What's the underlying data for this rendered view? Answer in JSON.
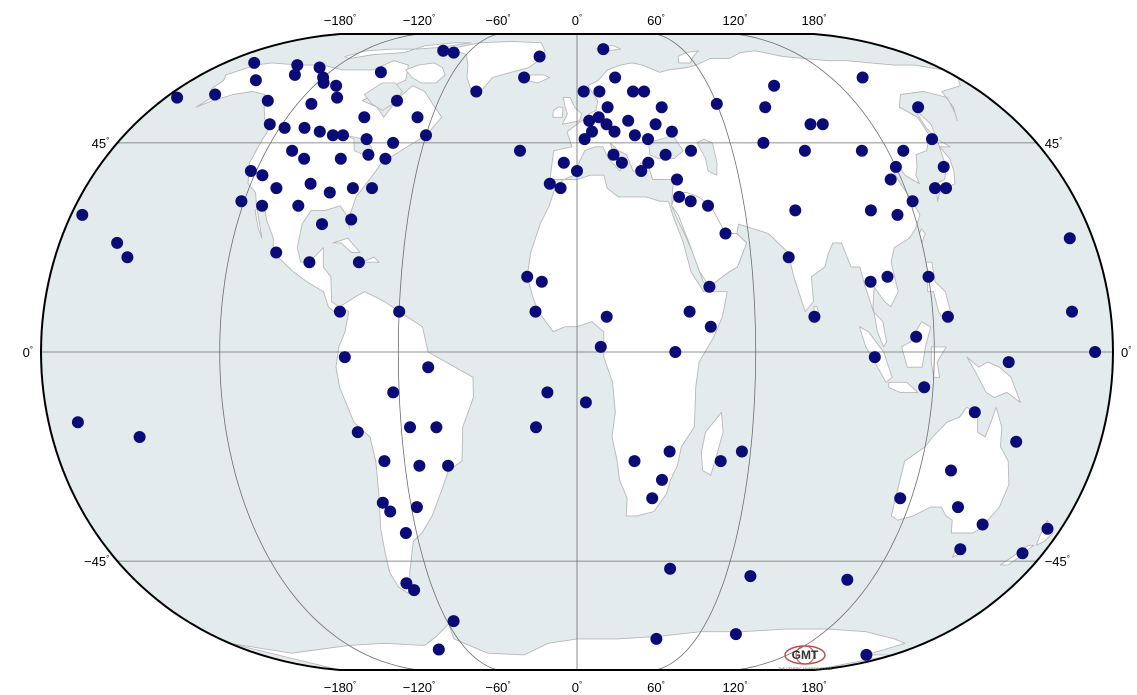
{
  "map": {
    "projection": "Winkel-Tripel-like world map",
    "colors": {
      "ocean": "#e3ebec",
      "land": "#ffffff",
      "coast": "#b8b8b8",
      "graticule": "#6e6e6e",
      "frame": "#000000",
      "station": "#0b0b78"
    },
    "top_lon_labels": [
      "−180",
      "−120",
      "−60",
      "0",
      "60",
      "120",
      "180"
    ],
    "bottom_lon_labels": [
      "−180",
      "−120",
      "−60",
      "0",
      "60",
      "120",
      "180"
    ],
    "left_lat_labels": [
      "45",
      "0",
      "−45"
    ],
    "right_lat_labels": [
      "45",
      "0",
      "−45"
    ],
    "degree_symbol": "°",
    "logo": {
      "text": "GMT",
      "caption": "THE GENERIC MAPPING TOOLS"
    },
    "stations": [
      [
        -165,
        71
      ],
      [
        -150,
        64
      ],
      [
        -141,
        70
      ],
      [
        -128,
        69
      ],
      [
        -135,
        66
      ],
      [
        -120,
        65
      ],
      [
        -117,
        63
      ],
      [
        -110,
        62
      ],
      [
        -95,
        67
      ],
      [
        -75,
        77
      ],
      [
        -68,
        76
      ],
      [
        -160,
        59
      ],
      [
        -175,
        58
      ],
      [
        -134,
        57
      ],
      [
        -114,
        56
      ],
      [
        -105,
        58
      ],
      [
        -88,
        52
      ],
      [
        -66,
        52
      ],
      [
        -78,
        57
      ],
      [
        -93,
        47
      ],
      [
        -83,
        46
      ],
      [
        -72,
        45
      ],
      [
        -125,
        50
      ],
      [
        -118,
        49
      ],
      [
        -110,
        49
      ],
      [
        -103,
        48
      ],
      [
        -97,
        47
      ],
      [
        -110,
        43
      ],
      [
        -104,
        41
      ],
      [
        -90,
        41
      ],
      [
        -80,
        42
      ],
      [
        -73,
        41
      ],
      [
        -60,
        47
      ],
      [
        -122,
        38
      ],
      [
        -117,
        37
      ],
      [
        -110,
        34
      ],
      [
        -98,
        35
      ],
      [
        -90,
        33
      ],
      [
        -82,
        34
      ],
      [
        -75,
        34
      ],
      [
        -121,
        31
      ],
      [
        -113,
        30
      ],
      [
        -100,
        30
      ],
      [
        -90,
        26
      ],
      [
        -80,
        27
      ],
      [
        -104,
        20
      ],
      [
        -92,
        18
      ],
      [
        -75,
        18
      ],
      [
        -160,
        22
      ],
      [
        -155,
        19
      ],
      [
        -176,
        28
      ],
      [
        -80,
        8
      ],
      [
        -60,
        8
      ],
      [
        -78,
        -1
      ],
      [
        -50,
        -3
      ],
      [
        -62,
        -8
      ],
      [
        -75,
        -16
      ],
      [
        -57,
        -15
      ],
      [
        -48,
        -15
      ],
      [
        -67,
        -22
      ],
      [
        -55,
        -23
      ],
      [
        -45,
        -23
      ],
      [
        -70,
        -31
      ],
      [
        -68,
        -33
      ],
      [
        -58,
        -32
      ],
      [
        -64,
        -38
      ],
      [
        -70,
        -51
      ],
      [
        -68,
        -53
      ],
      [
        -57,
        -63
      ],
      [
        -170,
        -14
      ],
      [
        -150,
        -17
      ],
      [
        -45,
        60
      ],
      [
        -25,
        65
      ],
      [
        -20,
        74
      ],
      [
        15,
        78
      ],
      [
        -22,
        43
      ],
      [
        -5,
        40
      ],
      [
        0,
        38
      ],
      [
        -10,
        35
      ],
      [
        -6,
        34
      ],
      [
        -17,
        15
      ],
      [
        -12,
        14
      ],
      [
        -14,
        8
      ],
      [
        3,
        46
      ],
      [
        6,
        48
      ],
      [
        9,
        52
      ],
      [
        12,
        50
      ],
      [
        15,
        48
      ],
      [
        5,
        51
      ],
      [
        13,
        55
      ],
      [
        10,
        60
      ],
      [
        25,
        60
      ],
      [
        30,
        60
      ],
      [
        18,
        65
      ],
      [
        3,
        60
      ],
      [
        21,
        51
      ],
      [
        23,
        47
      ],
      [
        28,
        46
      ],
      [
        32,
        50
      ],
      [
        36,
        55
      ],
      [
        38,
        48
      ],
      [
        34,
        42
      ],
      [
        44,
        43
      ],
      [
        27,
        40
      ],
      [
        24,
        38
      ],
      [
        17,
        40
      ],
      [
        14,
        42
      ],
      [
        37,
        36
      ],
      [
        37,
        32
      ],
      [
        41,
        31
      ],
      [
        47,
        30
      ],
      [
        52,
        24
      ],
      [
        45,
        13
      ],
      [
        45,
        5
      ],
      [
        38,
        8
      ],
      [
        33,
        0
      ],
      [
        20,
        -22
      ],
      [
        32,
        -20
      ],
      [
        27,
        -30
      ],
      [
        30,
        -26
      ],
      [
        50,
        -22
      ],
      [
        57,
        -20
      ],
      [
        3,
        -10
      ],
      [
        -10,
        -8
      ],
      [
        -14,
        -15
      ],
      [
        10,
        7
      ],
      [
        8,
        1
      ],
      [
        73,
        45
      ],
      [
        60,
        56
      ],
      [
        90,
        62
      ],
      [
        80,
        55
      ],
      [
        95,
        50
      ],
      [
        100,
        50
      ],
      [
        88,
        43
      ],
      [
        110,
        43
      ],
      [
        120,
        39
      ],
      [
        126,
        43
      ],
      [
        140,
        46
      ],
      [
        145,
        55
      ],
      [
        135,
        65
      ],
      [
        116,
        36
      ],
      [
        114,
        28
      ],
      [
        121,
        31
      ],
      [
        131,
        34
      ],
      [
        135,
        34
      ],
      [
        138,
        39
      ],
      [
        105,
        29
      ],
      [
        78,
        29
      ],
      [
        73,
        19
      ],
      [
        80,
        7
      ],
      [
        100,
        14
      ],
      [
        106,
        15
      ],
      [
        120,
        15
      ],
      [
        114,
        3
      ],
      [
        125,
        7
      ],
      [
        100,
        -1
      ],
      [
        145,
        -2
      ],
      [
        117,
        -7
      ],
      [
        135,
        -12
      ],
      [
        131,
        -24
      ],
      [
        151,
        -18
      ],
      [
        116,
        -30
      ],
      [
        138,
        -32
      ],
      [
        150,
        -36
      ],
      [
        147,
        -42
      ],
      [
        172,
        -43
      ],
      [
        175,
        -37
      ],
      [
        167,
        8
      ],
      [
        172,
        23
      ],
      [
        174,
        0
      ],
      [
        70,
        -49
      ],
      [
        110,
        -50
      ],
      [
        40,
        -70
      ],
      [
        78,
        -68
      ],
      [
        165,
        -78
      ],
      [
        -75,
        -75
      ],
      [
        37,
        -47
      ]
    ]
  }
}
